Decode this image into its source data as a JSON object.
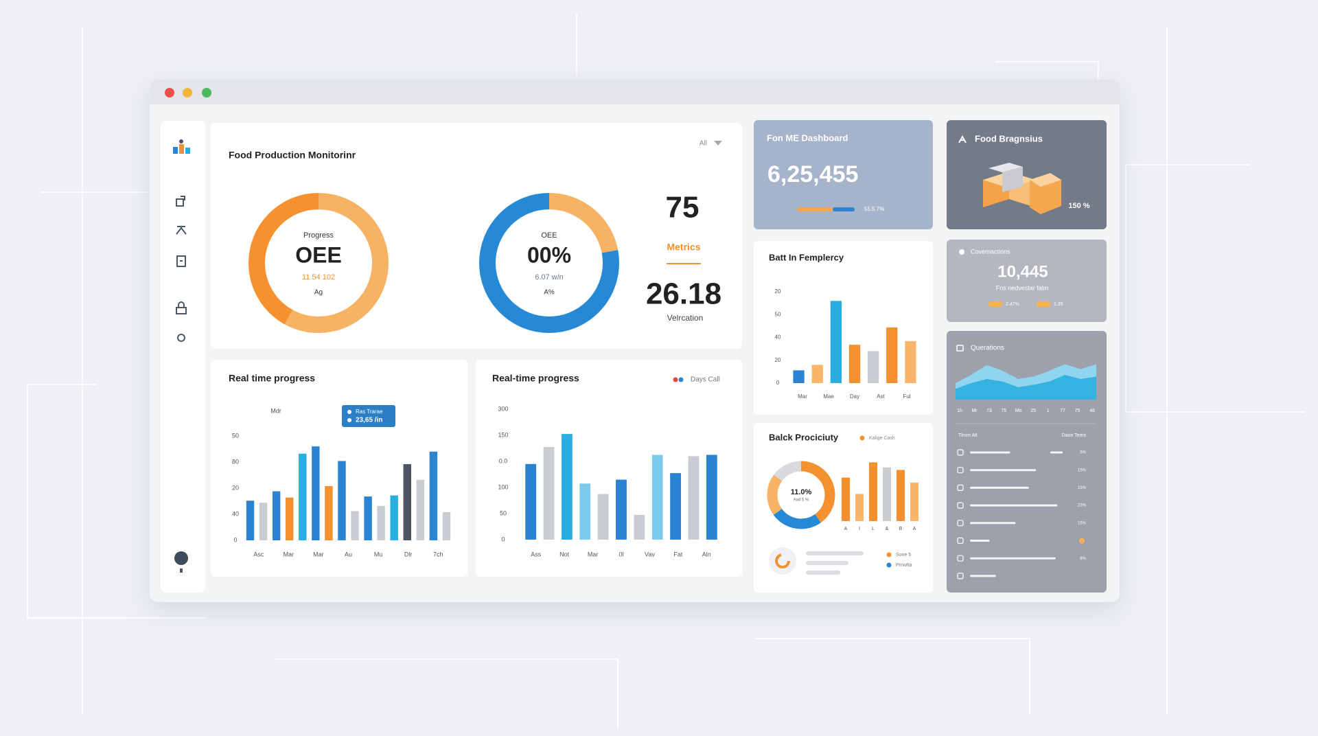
{
  "overview": {
    "title": "Food Production Monitorinr",
    "filter": "All",
    "gauges": [
      {
        "label": "Progress",
        "value_text": "OEE",
        "detail": "11.54 102",
        "footer": "Ag",
        "segments": [
          58,
          42
        ],
        "colors": [
          "#f8b264",
          "#f5922f"
        ]
      },
      {
        "label": "OEE",
        "value_text": "00%",
        "detail": "6.07 w/n",
        "footer": "A%",
        "segments": [
          22,
          78
        ],
        "colors": [
          "#f8b264",
          "#2589d6"
        ]
      }
    ],
    "metrics": {
      "top": 75,
      "label": "Metrics",
      "bottom": 26.18,
      "caption": "Velrcation"
    }
  },
  "progress_left": {
    "title": "Real time progress",
    "axis_caption": "Mdr",
    "tooltip": {
      "name": "Ras Trarae",
      "value": "23,65 /in"
    },
    "ylim": [
      0,
      100
    ],
    "y_labels": [
      "50",
      "80",
      "20",
      "40",
      "0"
    ],
    "x_labels": [
      "Asc",
      "Mar",
      "Mar",
      "Au",
      "Mu",
      "Dlr",
      "7ch"
    ],
    "values": [
      38,
      36,
      47,
      41,
      83,
      90,
      52,
      76,
      28,
      42,
      33,
      43,
      73,
      58,
      85,
      27
    ],
    "colors": [
      "#2b84d2",
      "#c9ccd3",
      "#2b84d2",
      "#f5902e",
      "#28aee0",
      "#2b84d2",
      "#f5902e",
      "#2b84d2",
      "#c9ccd3",
      "#2b84d2",
      "#c9ccd3",
      "#28aee0",
      "#4b5563",
      "#c9ccd3",
      "#2b84d2",
      "#c9ccd3"
    ]
  },
  "progress_right": {
    "title": "Real-time progress",
    "legend": "Days Call",
    "legend_colors": [
      "#e5483b",
      "#2b84d2"
    ],
    "ylim": [
      0,
      100
    ],
    "y_labels": [
      "300",
      "150",
      "0.0",
      "100",
      "50",
      "0"
    ],
    "x_labels": [
      "Ass",
      "Not",
      "Mar",
      "0l",
      "Vav",
      "Fat",
      "Aln"
    ],
    "values": [
      58,
      71,
      81,
      43,
      35,
      46,
      19,
      65,
      51,
      64,
      65
    ],
    "colors": [
      "#2b84d2",
      "#c9ccd3",
      "#28aee0",
      "#7ccbee",
      "#c9ccd3",
      "#2b84d2",
      "#c9ccd3",
      "#7ccbee",
      "#2b84d2",
      "#c9ccd3",
      "#2b84d2"
    ]
  },
  "headline": {
    "title": "Fon ME Dashboard",
    "value": "6,25,455",
    "progress": [
      62,
      38
    ],
    "progress_colors": [
      "#f8a54e",
      "#2b84d2"
    ],
    "progress_label": "55.5.7%"
  },
  "efficiency": {
    "title": "Batt In Femplercy",
    "ylim": [
      0,
      100
    ],
    "y_labels": [
      "20",
      "50",
      "40",
      "20",
      "0"
    ],
    "x_labels": [
      "Mar",
      "Mae",
      "Day",
      "Ast",
      "Ful"
    ],
    "values": [
      14,
      20,
      90,
      42,
      35,
      61,
      46
    ],
    "colors": [
      "#2b84d2",
      "#f9b56a",
      "#28aee0",
      "#f5902e",
      "#c9ccd3",
      "#f5902e",
      "#f9b56a"
    ]
  },
  "productivity": {
    "title": "Balck Prociciuty",
    "legend": "Kalige Cash",
    "legend_color": "#f5922f",
    "donut": {
      "segments": [
        40,
        25,
        20,
        15
      ],
      "colors": [
        "#f5922f",
        "#2589d6",
        "#f8b264",
        "#d8dade"
      ],
      "value": "11.0%",
      "caption": "Aod 5 %"
    },
    "ylim": [
      0,
      100
    ],
    "x_labels": [
      "A",
      "I",
      "L",
      "&",
      "B",
      "A"
    ],
    "values": [
      69,
      43,
      93,
      85,
      81,
      61
    ],
    "colors": [
      "#f5902e",
      "#f9b56a",
      "#f5902e",
      "#c9ccd3",
      "#f5902e",
      "#f9b56a"
    ],
    "legend_items": [
      {
        "name": "Sone 5",
        "color": "#f5922f"
      },
      {
        "name": "Prnwlta",
        "color": "#2b84d2"
      }
    ]
  },
  "brand": {
    "title": "Food Bragnsius",
    "value": "150 %"
  },
  "conversions": {
    "title": "Covernactions",
    "value": "10,445",
    "caption": "Fns nedvestar falm",
    "pills": [
      {
        "label": "2.47%",
        "color": "#f8b54e"
      },
      {
        "label": "1.35",
        "color": "#f8b54e"
      }
    ]
  },
  "operations": {
    "title": "Querations",
    "ylim": [
      0,
      100
    ],
    "x_labels": [
      "1h",
      "Mr",
      "73",
      "75",
      "Mo",
      "25",
      "1",
      "77",
      "75",
      "48"
    ],
    "series": [
      {
        "color": "#8fd8f2",
        "values": [
          40,
          60,
          84,
          70,
          50,
          56,
          70,
          86,
          74,
          86
        ]
      },
      {
        "color": "#2fb0de",
        "values": [
          26,
          40,
          50,
          44,
          30,
          36,
          44,
          60,
          50,
          56
        ]
      }
    ],
    "columns": [
      "Tlrom Atl",
      "Daon Tems"
    ],
    "bar_range": [
      0,
      100
    ],
    "rows": [
      {
        "bar": 45,
        "value": "5%"
      },
      {
        "bar": 74,
        "value": "15%"
      },
      {
        "bar": 66,
        "value": "15%"
      },
      {
        "bar": 98,
        "value": "23%"
      },
      {
        "bar": 51,
        "value": "15%"
      },
      {
        "bar": 22
      },
      {
        "bar": 96,
        "value": "8%"
      },
      {
        "bar": 29
      }
    ]
  }
}
